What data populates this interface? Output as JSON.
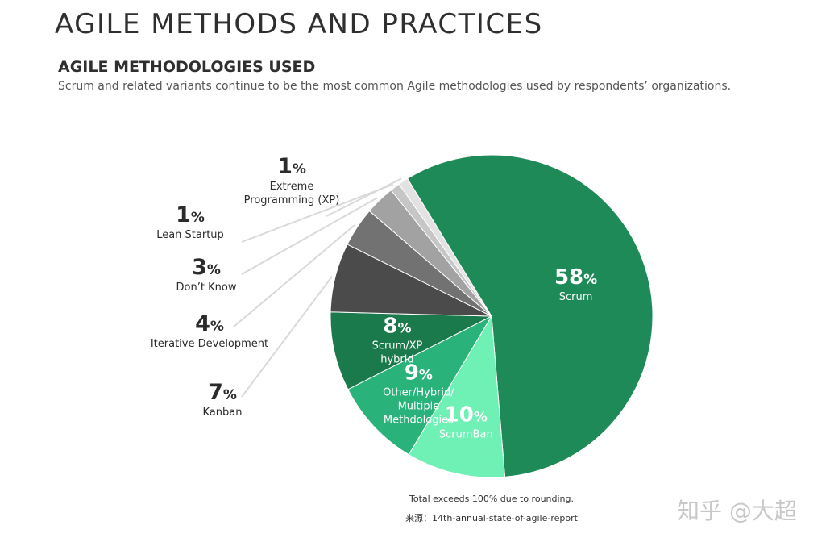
{
  "header": {
    "title": "AGILE METHODS AND PRACTICES",
    "section_title": "AGILE METHODOLOGIES USED",
    "subtitle": "Scrum and related variants continue to be the most common Agile methodologies used by respondents’ organizations."
  },
  "chart_data": {
    "type": "pie",
    "slices": [
      {
        "value": 58,
        "label_lines": [
          "Scrum"
        ],
        "color": "#1e8a57",
        "inside": true
      },
      {
        "value": 10,
        "label_lines": [
          "ScrumBan"
        ],
        "color": "#6ff0b4",
        "inside": true
      },
      {
        "value": 9,
        "label_lines": [
          "Other/Hybrid/",
          "Multiple",
          "Methdologies"
        ],
        "color": "#29b27a",
        "inside": true
      },
      {
        "value": 8,
        "label_lines": [
          "Scrum/XP",
          "hybrid"
        ],
        "color": "#1b7a4c",
        "inside": true
      },
      {
        "value": 7,
        "label_lines": [
          "Kanban"
        ],
        "color": "#4b4b4b",
        "inside": false
      },
      {
        "value": 4,
        "label_lines": [
          "Iterative Development"
        ],
        "color": "#727272",
        "inside": false
      },
      {
        "value": 3,
        "label_lines": [
          "Don’t Know"
        ],
        "color": "#a2a2a2",
        "inside": false
      },
      {
        "value": 1,
        "label_lines": [
          "Lean Startup"
        ],
        "color": "#c6c6c6",
        "inside": false
      },
      {
        "value": 1,
        "label_lines": [
          "Extreme",
          "Programming (XP)"
        ],
        "color": "#e2e2e2",
        "inside": false
      }
    ],
    "value_suffix": "%"
  },
  "footer": {
    "note": "Total exceeds 100% due to rounding.",
    "source": "来源：14th-annual-state-of-agile-report",
    "watermark": "知乎 @大超"
  }
}
